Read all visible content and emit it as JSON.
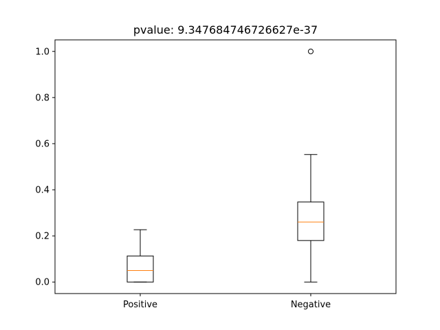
{
  "chart_data": {
    "type": "box",
    "title": "pvalue: 9.347684746726627e-37",
    "xlabel": "",
    "ylabel": "",
    "categories": [
      "Positive",
      "Negative"
    ],
    "ylim": [
      -0.05,
      1.05
    ],
    "yticks": [
      "0.0",
      "0.2",
      "0.4",
      "0.6",
      "0.8",
      "1.0"
    ],
    "grid": false,
    "boxes": [
      {
        "name": "Positive",
        "whisker_low": 0.0,
        "q1": 0.0,
        "median": 0.05,
        "q3": 0.113,
        "whisker_high": 0.227,
        "outliers": []
      },
      {
        "name": "Negative",
        "whisker_low": 0.0,
        "q1": 0.18,
        "median": 0.26,
        "q3": 0.347,
        "whisker_high": 0.553,
        "outliers": [
          1.0
        ]
      }
    ],
    "colors": {
      "box": "#000000",
      "median": "#ff7f0e",
      "background": "#ffffff"
    }
  }
}
